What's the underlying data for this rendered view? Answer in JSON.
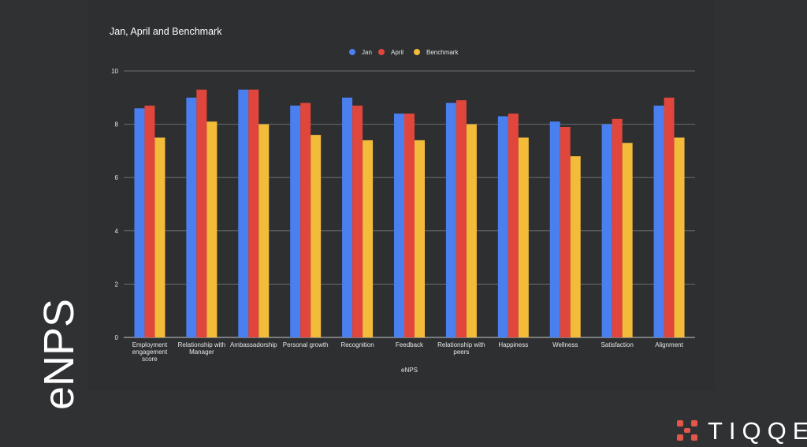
{
  "slide": {
    "side_title": "eNPS",
    "brand_name": "TIQQE",
    "brand_color": "#e3564a"
  },
  "chart_data": {
    "type": "bar",
    "title": "Jan, April and Benchmark",
    "xlabel": "eNPS",
    "ylabel": "",
    "ylim": [
      0,
      10
    ],
    "yticks": [
      0,
      2,
      4,
      6,
      8,
      10
    ],
    "grid": true,
    "legend_position": "top-center",
    "categories": [
      "Employment engagement score",
      "Relationship with Manager",
      "Ambassadorship",
      "Personal growth",
      "Recognition",
      "Feedback",
      "Relationship with peers",
      "Happiness",
      "Wellness",
      "Satisfaction",
      "Alignment"
    ],
    "category_label_lines": [
      [
        "Employment",
        "engagement",
        "score"
      ],
      [
        "Relationship with",
        "Manager"
      ],
      [
        "Ambassadorship"
      ],
      [
        "Personal growth"
      ],
      [
        "Recognition"
      ],
      [
        "Feedback"
      ],
      [
        "Relationship with",
        "peers"
      ],
      [
        "Happiness"
      ],
      [
        "Wellness"
      ],
      [
        "Satisfaction"
      ],
      [
        "Alignment"
      ]
    ],
    "series": [
      {
        "name": "Jan",
        "color": "#4a7ff0",
        "values": [
          8.6,
          9.0,
          9.3,
          8.7,
          9.0,
          8.4,
          8.8,
          8.3,
          8.1,
          8.0,
          8.7
        ]
      },
      {
        "name": "April",
        "color": "#e0463b",
        "values": [
          8.7,
          9.3,
          9.3,
          8.8,
          8.7,
          8.4,
          8.9,
          8.4,
          7.9,
          8.2,
          9.0
        ]
      },
      {
        "name": "Benchmark",
        "color": "#f2bb3a",
        "values": [
          7.5,
          8.1,
          8.0,
          7.6,
          7.4,
          7.4,
          8.0,
          7.5,
          6.8,
          7.3,
          7.5
        ]
      }
    ],
    "colors": {
      "grid": "#6a6d70",
      "axis": "#c8c8c8",
      "text": "#ffffff",
      "muted_text": "#e6e6e6"
    }
  }
}
